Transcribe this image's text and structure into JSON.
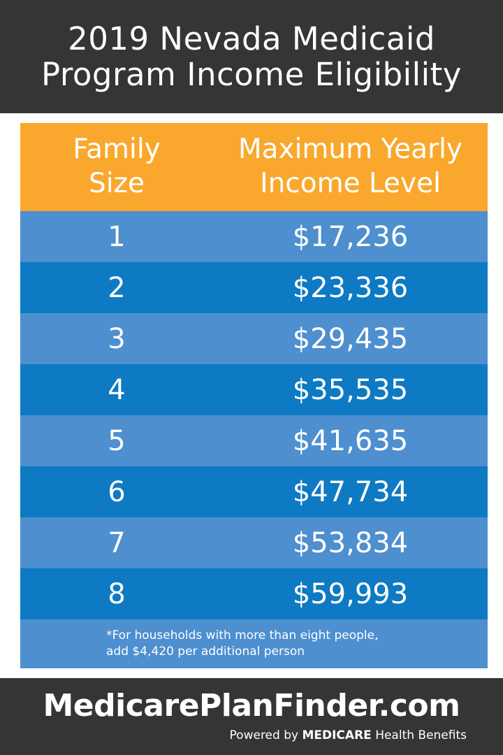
{
  "header": {
    "title_line1": "2019 Nevada Medicaid",
    "title_line2": "Program Income Eligibility"
  },
  "table": {
    "col1_header": "Family\nSize",
    "col2_header": "Maximum Yearly\nIncome Level",
    "rows": [
      {
        "size": "1",
        "income": "$17,236"
      },
      {
        "size": "2",
        "income": "$23,336"
      },
      {
        "size": "3",
        "income": "$29,435"
      },
      {
        "size": "4",
        "income": "$35,535"
      },
      {
        "size": "5",
        "income": "$41,635"
      },
      {
        "size": "6",
        "income": "$47,734"
      },
      {
        "size": "7",
        "income": "$53,834"
      },
      {
        "size": "8",
        "income": "$59,993"
      }
    ],
    "footnote_line1": "*For households with more than eight people,",
    "footnote_line2": "add $4,420 per additional person"
  },
  "footer": {
    "brand": "MedicarePlanFinder.com",
    "powered_prefix": "Powered by",
    "powered_brand": "MEDICARE",
    "powered_suffix": "Health Benefits"
  },
  "colors": {
    "dark_band": "#353535",
    "header_orange": "#f9a82d",
    "row_light_blue": "#4e8fcf",
    "row_dark_blue": "#0d7ac3"
  }
}
